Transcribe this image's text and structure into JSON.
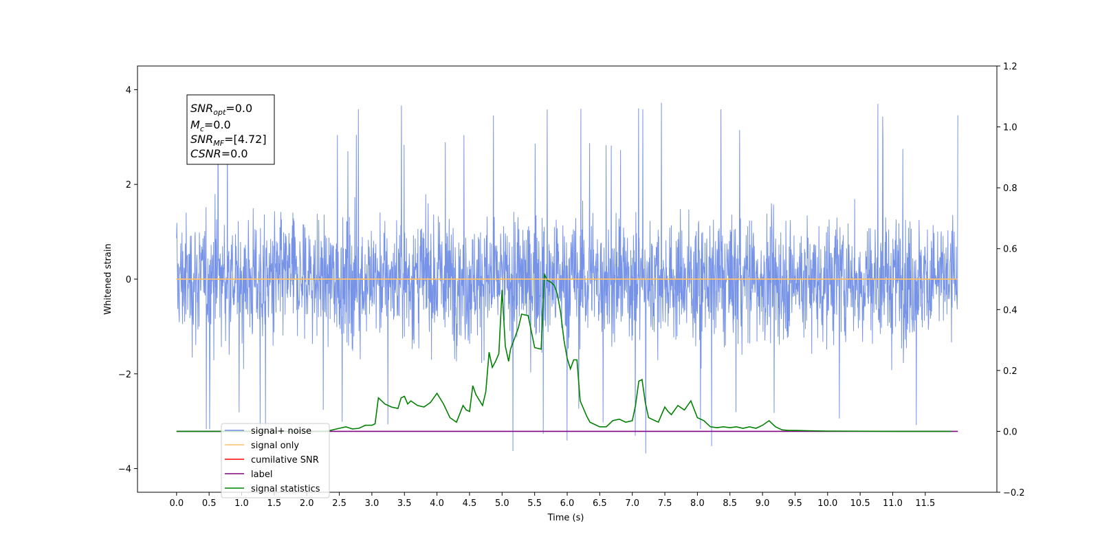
{
  "chart_data": {
    "type": "line",
    "xlabel": "Time (s)",
    "ylabel": "Whitened strain",
    "xlim": [
      -0.6,
      12.6
    ],
    "ylim": [
      -4.5,
      4.5
    ],
    "y2lim": [
      -0.2,
      1.2
    ],
    "x_ticks": [
      0.0,
      0.5,
      1.0,
      1.5,
      2.0,
      2.5,
      3.0,
      3.5,
      4.0,
      4.5,
      5.0,
      5.5,
      6.0,
      6.5,
      7.0,
      7.5,
      8.0,
      8.5,
      9.0,
      9.5,
      10.0,
      10.5,
      11.0,
      11.5
    ],
    "x_tick_labels": [
      "0.0",
      "0.5",
      "1.0",
      "1.5",
      "2.0",
      "2.5",
      "3.0",
      "3.5",
      "4.0",
      "4.5",
      "5.0",
      "5.5",
      "6.0",
      "6.5",
      "7.0",
      "7.5",
      "8.0",
      "8.5",
      "9.0",
      "9.5",
      "10.0",
      "10.5",
      "11.0",
      "11.5"
    ],
    "y_ticks": [
      4,
      2,
      0,
      -2,
      -4
    ],
    "y_tick_labels": [
      "4",
      "2",
      "0",
      "−2",
      "−4"
    ],
    "y2_ticks": [
      1.2,
      1.0,
      0.8,
      0.6,
      0.4,
      0.2,
      0.0,
      -0.2
    ],
    "y2_tick_labels": [
      "1.2",
      "1.0",
      "0.8",
      "0.6",
      "0.4",
      "0.2",
      "0.0",
      "−0.2"
    ],
    "grid": false,
    "legend_position": "lower-left",
    "series": [
      {
        "name": "signal+ noise",
        "color": "#6f8de6",
        "axis": "left",
        "kind": "noise",
        "x_range": [
          0.0,
          12.0
        ],
        "typical_amplitude": [
          -2.0,
          2.2
        ],
        "peak_high": 4.1,
        "peak_low": -4.1
      },
      {
        "name": "signal only",
        "color": "#ffbf66",
        "axis": "left",
        "x": [
          0.0,
          12.0
        ],
        "y": [
          0.0,
          0.0
        ]
      },
      {
        "name": "cumilative SNR",
        "color": "#ff0000",
        "axis": "left",
        "x": [],
        "y": []
      },
      {
        "name": "label",
        "color": "#800080",
        "axis": "right",
        "x": [
          0.0,
          12.0
        ],
        "y": [
          0.0,
          0.0
        ]
      },
      {
        "name": "signal statistics",
        "color": "#008000",
        "axis": "right",
        "x": [
          0.0,
          1.0,
          2.0,
          2.3,
          2.5,
          2.6,
          2.7,
          2.8,
          2.9,
          3.0,
          3.05,
          3.1,
          3.2,
          3.3,
          3.4,
          3.45,
          3.5,
          3.55,
          3.6,
          3.7,
          3.8,
          3.9,
          4.0,
          4.1,
          4.2,
          4.3,
          4.4,
          4.45,
          4.5,
          4.55,
          4.6,
          4.7,
          4.75,
          4.8,
          4.85,
          4.9,
          4.95,
          5.0,
          5.05,
          5.1,
          5.13,
          5.2,
          5.25,
          5.3,
          5.4,
          5.5,
          5.6,
          5.65,
          5.7,
          5.75,
          5.8,
          5.85,
          5.9,
          5.95,
          6.0,
          6.05,
          6.1,
          6.15,
          6.2,
          6.3,
          6.35,
          6.4,
          6.5,
          6.6,
          6.7,
          6.8,
          6.9,
          7.0,
          7.05,
          7.1,
          7.15,
          7.2,
          7.25,
          7.3,
          7.35,
          7.4,
          7.5,
          7.55,
          7.6,
          7.7,
          7.8,
          7.9,
          8.0,
          8.1,
          8.2,
          8.3,
          8.4,
          8.5,
          8.6,
          8.7,
          8.8,
          8.9,
          9.0,
          9.1,
          9.2,
          9.3,
          9.4,
          9.5,
          9.7,
          10.0,
          11.0,
          11.9
        ],
        "y": [
          0.0,
          0.0,
          0.0,
          0.0,
          0.01,
          0.015,
          0.008,
          0.01,
          0.02,
          0.02,
          0.025,
          0.11,
          0.09,
          0.08,
          0.075,
          0.11,
          0.115,
          0.09,
          0.1,
          0.085,
          0.08,
          0.095,
          0.125,
          0.09,
          0.045,
          0.03,
          0.085,
          0.07,
          0.065,
          0.15,
          0.12,
          0.085,
          0.13,
          0.26,
          0.21,
          0.23,
          0.255,
          0.465,
          0.28,
          0.23,
          0.27,
          0.31,
          0.34,
          0.385,
          0.38,
          0.275,
          0.27,
          0.515,
          0.495,
          0.49,
          0.48,
          0.45,
          0.39,
          0.3,
          0.24,
          0.205,
          0.235,
          0.235,
          0.1,
          0.05,
          0.03,
          0.025,
          0.015,
          0.015,
          0.035,
          0.04,
          0.03,
          0.035,
          0.085,
          0.165,
          0.17,
          0.095,
          0.045,
          0.04,
          0.035,
          0.03,
          0.08,
          0.065,
          0.055,
          0.085,
          0.07,
          0.1,
          0.045,
          0.035,
          0.015,
          0.012,
          0.015,
          0.012,
          0.015,
          0.01,
          0.015,
          0.01,
          0.02,
          0.035,
          0.015,
          0.005,
          0.003,
          0.003,
          0.002,
          0.001,
          0.0,
          0.0
        ]
      }
    ],
    "annotation": [
      {
        "base": "SNR",
        "sub": "opt",
        "rest": "=0.0"
      },
      {
        "base": "M",
        "sub": "c",
        "rest": "=0.0"
      },
      {
        "base": "SNR",
        "sub": "MF",
        "rest": "=[4.72]"
      },
      {
        "base": "CSNR",
        "sub": "",
        "rest": "=0.0"
      }
    ]
  }
}
